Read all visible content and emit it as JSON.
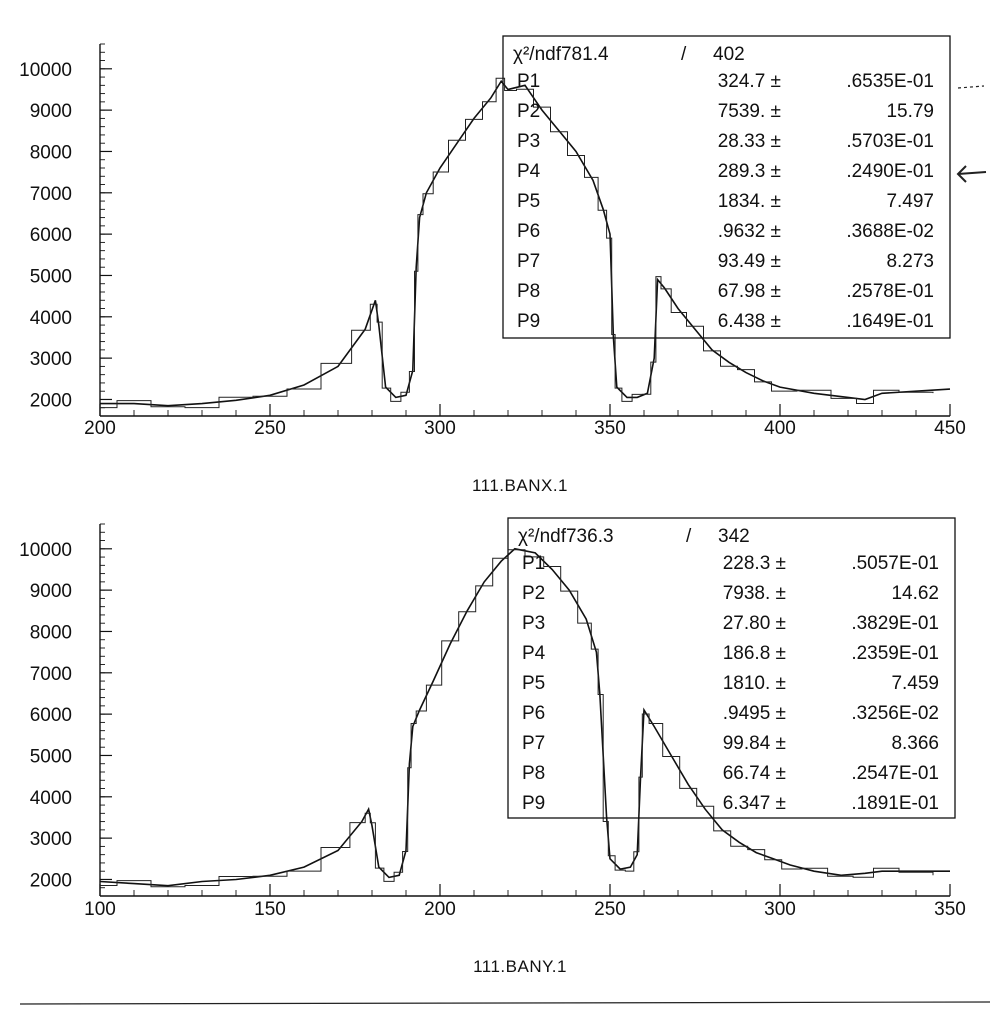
{
  "chart_data": [
    {
      "type": "line",
      "xlabel": "111.BANX.1",
      "xlim": [
        200,
        450
      ],
      "ylim": [
        1600,
        10600
      ],
      "xticks": [
        "200",
        "250",
        "300",
        "350",
        "400",
        "450"
      ],
      "yticks": [
        "2000",
        "3000",
        "4000",
        "5000",
        "6000",
        "7000",
        "8000",
        "9000",
        "10000"
      ],
      "stats": {
        "chi2_label": "χ²/ndf781.4",
        "chi2_value": "402",
        "params": [
          {
            "name": "P1",
            "value": "324.7 ±",
            "error": ".6535E-01"
          },
          {
            "name": "P2",
            "value": "7539. ±",
            "error": "15.79"
          },
          {
            "name": "P3",
            "value": "28.33 ±",
            "error": ".5703E-01"
          },
          {
            "name": "P4",
            "value": "289.3 ±",
            "error": ".2490E-01"
          },
          {
            "name": "P5",
            "value": "1834. ±",
            "error": "7.497"
          },
          {
            "name": "P6",
            "value": ".9632 ±",
            "error": ".3688E-02"
          },
          {
            "name": "P7",
            "value": "93.49 ±",
            "error": "8.273"
          },
          {
            "name": "P8",
            "value": "67.98 ±",
            "error": ".2578E-01"
          },
          {
            "name": "P9",
            "value": "6.438 ±",
            "error": ".1649E-01"
          }
        ]
      },
      "series": [
        {
          "x": [
            200,
            210,
            220,
            230,
            240,
            250,
            260,
            270,
            278,
            281,
            282,
            284,
            287,
            290,
            292,
            293,
            294,
            296,
            300,
            305,
            310,
            315,
            318,
            320,
            325,
            330,
            335,
            340,
            345,
            348,
            350,
            351,
            352,
            355,
            358,
            361,
            363,
            364,
            366,
            370,
            375,
            380,
            385,
            390,
            395,
            400,
            410,
            420,
            425,
            430,
            440,
            450
          ],
          "y": [
            1900,
            1900,
            1850,
            1900,
            1980,
            2100,
            2350,
            2800,
            3700,
            4400,
            3800,
            2300,
            2050,
            2100,
            2700,
            5200,
            6400,
            7000,
            7600,
            8200,
            8800,
            9300,
            9700,
            9500,
            9600,
            9000,
            8500,
            8000,
            7300,
            6600,
            6000,
            3500,
            2300,
            2050,
            2050,
            2150,
            3000,
            4900,
            4700,
            4200,
            3700,
            3200,
            2900,
            2650,
            2450,
            2300,
            2150,
            2050,
            2000,
            2150,
            2200,
            2250
          ]
        }
      ]
    },
    {
      "type": "line",
      "xlabel": "111.BANY.1",
      "xlim": [
        100,
        350
      ],
      "ylim": [
        1600,
        10600
      ],
      "xticks": [
        "100",
        "150",
        "200",
        "250",
        "300",
        "350"
      ],
      "yticks": [
        "2000",
        "3000",
        "4000",
        "5000",
        "6000",
        "7000",
        "8000",
        "9000",
        "10000"
      ],
      "stats": {
        "chi2_label": "χ²/ndf736.3",
        "chi2_value": "342",
        "params": [
          {
            "name": "P1",
            "value": "228.3 ±",
            "error": ".5057E-01"
          },
          {
            "name": "P2",
            "value": "7938. ±",
            "error": "14.62"
          },
          {
            "name": "P3",
            "value": "27.80 ±",
            "error": ".3829E-01"
          },
          {
            "name": "P4",
            "value": "186.8 ±",
            "error": ".2359E-01"
          },
          {
            "name": "P5",
            "value": "1810. ±",
            "error": "7.459"
          },
          {
            "name": "P6",
            "value": ".9495 ±",
            "error": ".3256E-02"
          },
          {
            "name": "P7",
            "value": "99.84 ±",
            "error": "8.366"
          },
          {
            "name": "P8",
            "value": "66.74 ±",
            "error": ".2547E-01"
          },
          {
            "name": "P9",
            "value": "6.347 ±",
            "error": ".1891E-01"
          }
        ]
      },
      "series": [
        {
          "x": [
            100,
            110,
            120,
            130,
            140,
            150,
            160,
            170,
            177,
            179,
            180,
            182,
            185,
            188,
            190,
            191,
            192,
            194,
            198,
            203,
            208,
            213,
            218,
            222,
            228,
            233,
            238,
            243,
            246,
            247,
            249,
            250,
            253,
            256,
            258,
            259,
            260,
            263,
            268,
            273,
            278,
            283,
            288,
            293,
            298,
            303,
            310,
            318,
            325,
            330,
            340,
            350
          ],
          "y": [
            1950,
            1900,
            1850,
            1950,
            2000,
            2100,
            2300,
            2700,
            3400,
            3700,
            3300,
            2300,
            2050,
            2100,
            2700,
            4800,
            5700,
            6100,
            6800,
            7700,
            8500,
            9200,
            9700,
            10000,
            9900,
            9500,
            9000,
            8300,
            7500,
            6500,
            3500,
            2500,
            2250,
            2300,
            2600,
            4500,
            6100,
            5700,
            5000,
            4300,
            3700,
            3200,
            2900,
            2650,
            2500,
            2350,
            2200,
            2100,
            2150,
            2200,
            2200,
            2200
          ]
        }
      ]
    }
  ]
}
